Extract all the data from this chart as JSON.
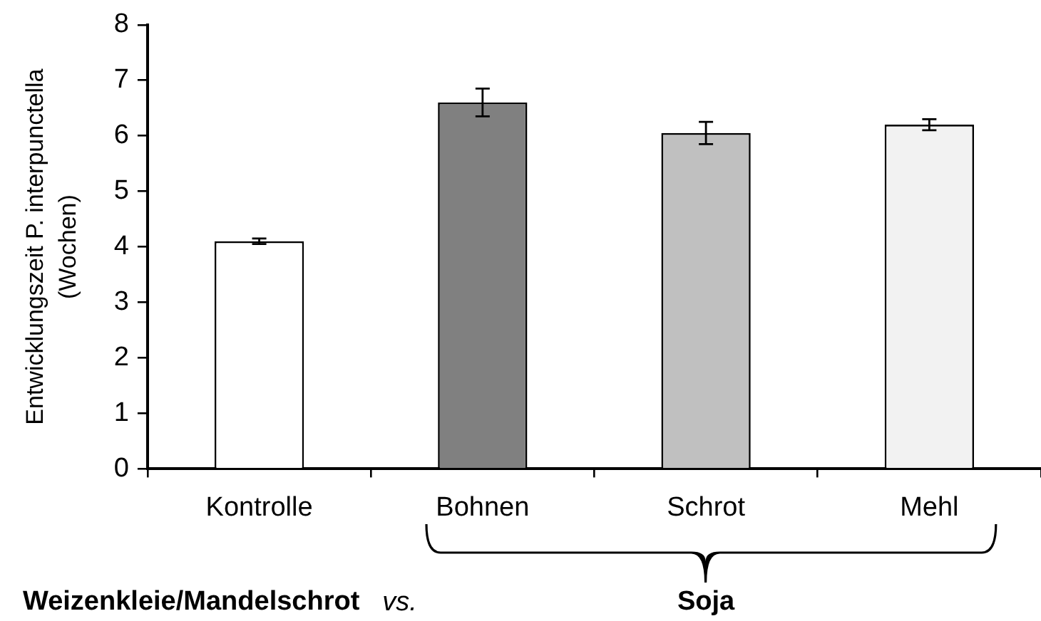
{
  "chart_data": {
    "type": "bar",
    "ylabel": "Entwicklungszeit P. interpunctella\n(Wochen)",
    "categories": [
      "Kontrolle",
      "Bohnen",
      "Schrot",
      "Mehl"
    ],
    "values": [
      4.1,
      6.6,
      6.05,
      6.2
    ],
    "colors": [
      "#ffffff",
      "#808080",
      "#c0c0c0",
      "#f2f2f2"
    ],
    "errors": [
      0.05,
      0.25,
      0.2,
      0.1
    ],
    "ylim": [
      0,
      8
    ],
    "yticks": [
      0,
      1,
      2,
      3,
      4,
      5,
      6,
      7,
      8
    ],
    "grid": false,
    "legend": false,
    "annotations": [
      "Weizenkleie/Mandelschrot",
      "vs.",
      "Soja"
    ]
  }
}
